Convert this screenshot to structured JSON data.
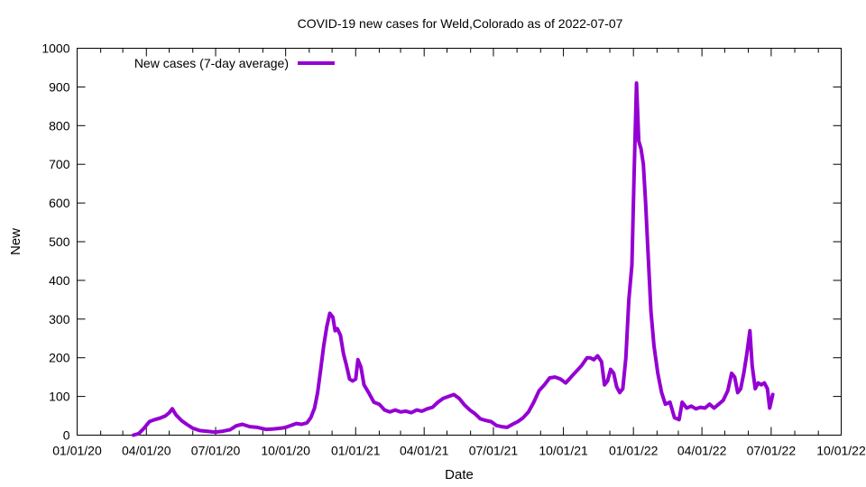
{
  "chart_data": {
    "type": "line",
    "title": "COVID-19 new cases for Weld,Colorado as of 2022-07-07",
    "xlabel": "Date",
    "ylabel": "New",
    "xlim": [
      "2020-01-01",
      "2022-10-01"
    ],
    "ylim": [
      0,
      1000
    ],
    "grid": false,
    "legend_position": "top-left",
    "x_tick_labels": [
      "01/01/20",
      "04/01/20",
      "07/01/20",
      "10/01/20",
      "01/01/21",
      "04/01/21",
      "07/01/21",
      "10/01/21",
      "01/01/22",
      "04/01/22",
      "07/01/22",
      "10/01/22"
    ],
    "y_tick_labels": [
      "0",
      "100",
      "200",
      "300",
      "400",
      "500",
      "600",
      "700",
      "800",
      "900",
      "1000"
    ],
    "series": [
      {
        "name": "New cases (7-day average)",
        "color": "#9400D3",
        "points": [
          [
            "2020-03-15",
            0
          ],
          [
            "2020-03-22",
            4
          ],
          [
            "2020-03-29",
            18
          ],
          [
            "2020-04-05",
            35
          ],
          [
            "2020-04-12",
            40
          ],
          [
            "2020-04-19",
            44
          ],
          [
            "2020-04-26",
            50
          ],
          [
            "2020-05-01",
            58
          ],
          [
            "2020-05-05",
            68
          ],
          [
            "2020-05-10",
            52
          ],
          [
            "2020-05-17",
            38
          ],
          [
            "2020-05-24",
            28
          ],
          [
            "2020-06-01",
            18
          ],
          [
            "2020-06-10",
            12
          ],
          [
            "2020-06-20",
            10
          ],
          [
            "2020-06-30",
            8
          ],
          [
            "2020-07-10",
            10
          ],
          [
            "2020-07-20",
            14
          ],
          [
            "2020-07-28",
            24
          ],
          [
            "2020-08-05",
            28
          ],
          [
            "2020-08-15",
            22
          ],
          [
            "2020-08-25",
            20
          ],
          [
            "2020-09-05",
            15
          ],
          [
            "2020-09-15",
            16
          ],
          [
            "2020-09-25",
            18
          ],
          [
            "2020-10-01",
            20
          ],
          [
            "2020-10-08",
            25
          ],
          [
            "2020-10-15",
            30
          ],
          [
            "2020-10-22",
            28
          ],
          [
            "2020-10-29",
            32
          ],
          [
            "2020-11-03",
            45
          ],
          [
            "2020-11-08",
            70
          ],
          [
            "2020-11-12",
            110
          ],
          [
            "2020-11-16",
            170
          ],
          [
            "2020-11-20",
            230
          ],
          [
            "2020-11-24",
            280
          ],
          [
            "2020-11-28",
            315
          ],
          [
            "2020-12-02",
            305
          ],
          [
            "2020-12-05",
            270
          ],
          [
            "2020-12-08",
            275
          ],
          [
            "2020-12-12",
            258
          ],
          [
            "2020-12-16",
            210
          ],
          [
            "2020-12-20",
            180
          ],
          [
            "2020-12-24",
            145
          ],
          [
            "2020-12-28",
            140
          ],
          [
            "2021-01-01",
            145
          ],
          [
            "2021-01-04",
            195
          ],
          [
            "2021-01-08",
            175
          ],
          [
            "2021-01-12",
            130
          ],
          [
            "2021-01-18",
            110
          ],
          [
            "2021-01-25",
            85
          ],
          [
            "2021-02-01",
            80
          ],
          [
            "2021-02-08",
            65
          ],
          [
            "2021-02-15",
            60
          ],
          [
            "2021-02-22",
            65
          ],
          [
            "2021-03-01",
            60
          ],
          [
            "2021-03-08",
            62
          ],
          [
            "2021-03-15",
            58
          ],
          [
            "2021-03-22",
            65
          ],
          [
            "2021-03-29",
            62
          ],
          [
            "2021-04-05",
            68
          ],
          [
            "2021-04-12",
            72
          ],
          [
            "2021-04-19",
            85
          ],
          [
            "2021-04-26",
            95
          ],
          [
            "2021-05-03",
            100
          ],
          [
            "2021-05-10",
            105
          ],
          [
            "2021-05-17",
            95
          ],
          [
            "2021-05-24",
            78
          ],
          [
            "2021-05-31",
            65
          ],
          [
            "2021-06-07",
            55
          ],
          [
            "2021-06-14",
            42
          ],
          [
            "2021-06-21",
            38
          ],
          [
            "2021-06-28",
            35
          ],
          [
            "2021-07-05",
            25
          ],
          [
            "2021-07-12",
            22
          ],
          [
            "2021-07-19",
            20
          ],
          [
            "2021-07-26",
            28
          ],
          [
            "2021-08-02",
            35
          ],
          [
            "2021-08-09",
            45
          ],
          [
            "2021-08-16",
            60
          ],
          [
            "2021-08-23",
            85
          ],
          [
            "2021-08-30",
            115
          ],
          [
            "2021-09-06",
            130
          ],
          [
            "2021-09-13",
            148
          ],
          [
            "2021-09-20",
            150
          ],
          [
            "2021-09-27",
            145
          ],
          [
            "2021-10-04",
            135
          ],
          [
            "2021-10-11",
            150
          ],
          [
            "2021-10-18",
            165
          ],
          [
            "2021-10-25",
            180
          ],
          [
            "2021-11-01",
            200
          ],
          [
            "2021-11-05",
            200
          ],
          [
            "2021-11-10",
            195
          ],
          [
            "2021-11-15",
            205
          ],
          [
            "2021-11-20",
            190
          ],
          [
            "2021-11-24",
            130
          ],
          [
            "2021-11-28",
            140
          ],
          [
            "2021-12-02",
            170
          ],
          [
            "2021-12-06",
            160
          ],
          [
            "2021-12-10",
            125
          ],
          [
            "2021-12-14",
            110
          ],
          [
            "2021-12-18",
            120
          ],
          [
            "2021-12-22",
            200
          ],
          [
            "2021-12-26",
            350
          ],
          [
            "2021-12-30",
            440
          ],
          [
            "2022-01-02",
            680
          ],
          [
            "2022-01-05",
            910
          ],
          [
            "2022-01-08",
            760
          ],
          [
            "2022-01-11",
            740
          ],
          [
            "2022-01-14",
            700
          ],
          [
            "2022-01-17",
            600
          ],
          [
            "2022-01-20",
            480
          ],
          [
            "2022-01-24",
            320
          ],
          [
            "2022-01-28",
            230
          ],
          [
            "2022-02-02",
            160
          ],
          [
            "2022-02-07",
            110
          ],
          [
            "2022-02-12",
            80
          ],
          [
            "2022-02-18",
            85
          ],
          [
            "2022-02-24",
            45
          ],
          [
            "2022-03-02",
            40
          ],
          [
            "2022-03-06",
            85
          ],
          [
            "2022-03-12",
            70
          ],
          [
            "2022-03-18",
            75
          ],
          [
            "2022-03-24",
            68
          ],
          [
            "2022-03-30",
            72
          ],
          [
            "2022-04-05",
            70
          ],
          [
            "2022-04-11",
            80
          ],
          [
            "2022-04-17",
            70
          ],
          [
            "2022-04-23",
            80
          ],
          [
            "2022-04-29",
            90
          ],
          [
            "2022-05-05",
            115
          ],
          [
            "2022-05-10",
            160
          ],
          [
            "2022-05-14",
            150
          ],
          [
            "2022-05-18",
            110
          ],
          [
            "2022-05-22",
            120
          ],
          [
            "2022-05-26",
            160
          ],
          [
            "2022-05-30",
            210
          ],
          [
            "2022-06-03",
            270
          ],
          [
            "2022-06-06",
            180
          ],
          [
            "2022-06-10",
            120
          ],
          [
            "2022-06-14",
            135
          ],
          [
            "2022-06-18",
            130
          ],
          [
            "2022-06-22",
            135
          ],
          [
            "2022-06-26",
            120
          ],
          [
            "2022-06-29",
            70
          ],
          [
            "2022-07-03",
            105
          ]
        ]
      }
    ]
  }
}
